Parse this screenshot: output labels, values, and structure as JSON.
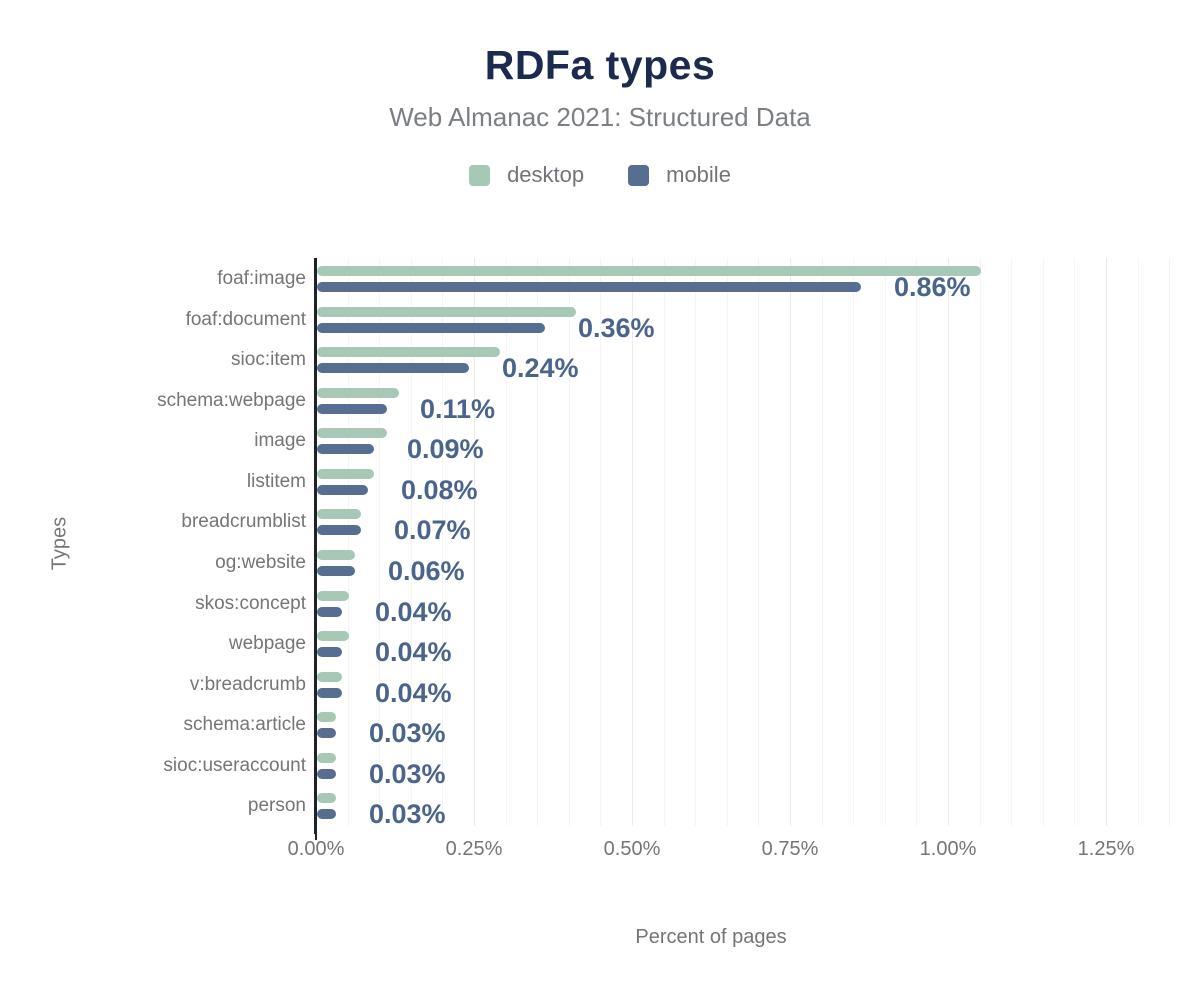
{
  "header": {
    "title": "RDFa types",
    "subtitle": "Web Almanac 2021: Structured Data"
  },
  "legend": [
    {
      "label": "desktop",
      "color": "#a6c8b5"
    },
    {
      "label": "mobile",
      "color": "#576d92"
    }
  ],
  "chart_data": {
    "type": "bar",
    "orientation": "horizontal",
    "title": "RDFa types",
    "subtitle": "Web Almanac 2021: Structured Data",
    "xlabel": "Percent of pages",
    "ylabel": "Types",
    "legend_position": "top",
    "grid": {
      "minor_step": 0.05,
      "major_step": 0.25
    },
    "xlim": [
      0,
      1.375
    ],
    "x_ticks": [
      "0.00%",
      "0.25%",
      "0.50%",
      "0.75%",
      "1.00%",
      "1.25%"
    ],
    "x_tick_values": [
      0,
      0.25,
      0.5,
      0.75,
      1.0,
      1.25
    ],
    "categories": [
      "foaf:image",
      "foaf:document",
      "sioc:item",
      "schema:webpage",
      "image",
      "listitem",
      "breadcrumblist",
      "og:website",
      "skos:concept",
      "webpage",
      "v:breadcrumb",
      "schema:article",
      "sioc:useraccount",
      "person"
    ],
    "series": [
      {
        "name": "desktop",
        "color": "#a6c8b5",
        "values": [
          1.05,
          0.41,
          0.29,
          0.13,
          0.11,
          0.09,
          0.07,
          0.06,
          0.05,
          0.05,
          0.04,
          0.03,
          0.03,
          0.03
        ]
      },
      {
        "name": "mobile",
        "color": "#576d92",
        "values": [
          0.86,
          0.36,
          0.24,
          0.11,
          0.09,
          0.08,
          0.07,
          0.06,
          0.04,
          0.04,
          0.04,
          0.03,
          0.03,
          0.03
        ]
      }
    ],
    "data_labels": [
      "0.86%",
      "0.36%",
      "0.24%",
      "0.11%",
      "0.09%",
      "0.08%",
      "0.07%",
      "0.06%",
      "0.04%",
      "0.04%",
      "0.04%",
      "0.03%",
      "0.03%",
      "0.03%"
    ]
  }
}
